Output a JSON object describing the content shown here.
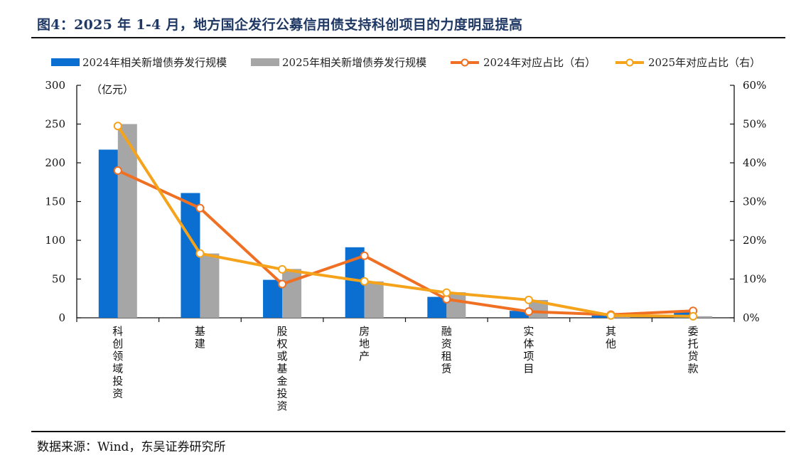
{
  "header": {
    "title": "图4：2025 年 1-4 月，地方国企发行公募信用债支持科创项目的力度明显提高"
  },
  "footer": {
    "source": "数据来源：Wind，东吴证券研究所"
  },
  "colors": {
    "bar2024": "#0a6fd1",
    "bar2025": "#a6a6a6",
    "line2024": "#f07023",
    "line2025": "#f5a31a"
  },
  "chart_data": {
    "type": "bar",
    "title": "2025 年 1-4 月，地方国企发行公募信用债支持科创项目的力度明显提高",
    "ylabel_unit": "（亿元）",
    "ylim": [
      0,
      300
    ],
    "y_ticks": [
      0,
      50,
      100,
      150,
      200,
      250,
      300
    ],
    "y2lim": [
      0,
      60
    ],
    "y2_ticks": [
      "0%",
      "10%",
      "20%",
      "30%",
      "40%",
      "50%",
      "60%"
    ],
    "categories": [
      "科创领域投资",
      "基建",
      "股权或基金投资",
      "房地产",
      "融资租赁",
      "实体项目",
      "其他",
      "委托贷款"
    ],
    "series": [
      {
        "name": "2024年相关新增债券发行规模",
        "kind": "bar",
        "axis": "left",
        "values": [
          217,
          161,
          49,
          91,
          27,
          9,
          3,
          9
        ]
      },
      {
        "name": "2025年相关新增债券发行规模",
        "kind": "bar",
        "axis": "left",
        "values": [
          250,
          83,
          63,
          47,
          33,
          23,
          3,
          2
        ]
      },
      {
        "name": "2024年对应占比（右）",
        "kind": "line",
        "axis": "right",
        "values": [
          38,
          28.3,
          8.7,
          16,
          4.8,
          1.6,
          0.8,
          1.8
        ]
      },
      {
        "name": "2025年对应占比（右）",
        "kind": "line",
        "axis": "right",
        "values": [
          49.5,
          16.6,
          12.5,
          9.4,
          6.5,
          4.6,
          0.6,
          0.4
        ]
      }
    ],
    "legend_position": "top"
  }
}
